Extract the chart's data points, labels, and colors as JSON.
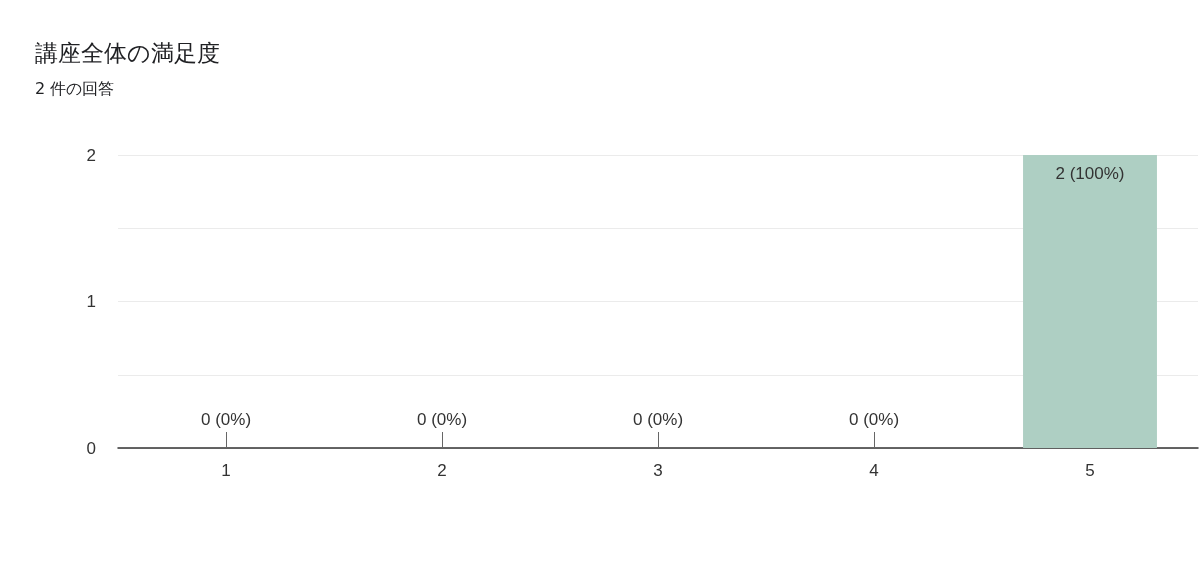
{
  "chart_data": {
    "type": "bar",
    "title": "講座全体の満足度",
    "subtitle": "2 件の回答",
    "categories": [
      "1",
      "2",
      "3",
      "4",
      "5"
    ],
    "values": [
      0,
      0,
      0,
      0,
      2
    ],
    "value_labels": [
      "0 (0%)",
      "0 (0%)",
      "0 (0%)",
      "0 (0%)",
      "2 (100%)"
    ],
    "color": "#aecfc3",
    "ylim": [
      0,
      2
    ],
    "yticks": [
      0,
      {
        "value": 0.5,
        "label": null
      },
      1,
      {
        "value": 1.5,
        "label": null
      },
      2
    ],
    "grid": true
  }
}
